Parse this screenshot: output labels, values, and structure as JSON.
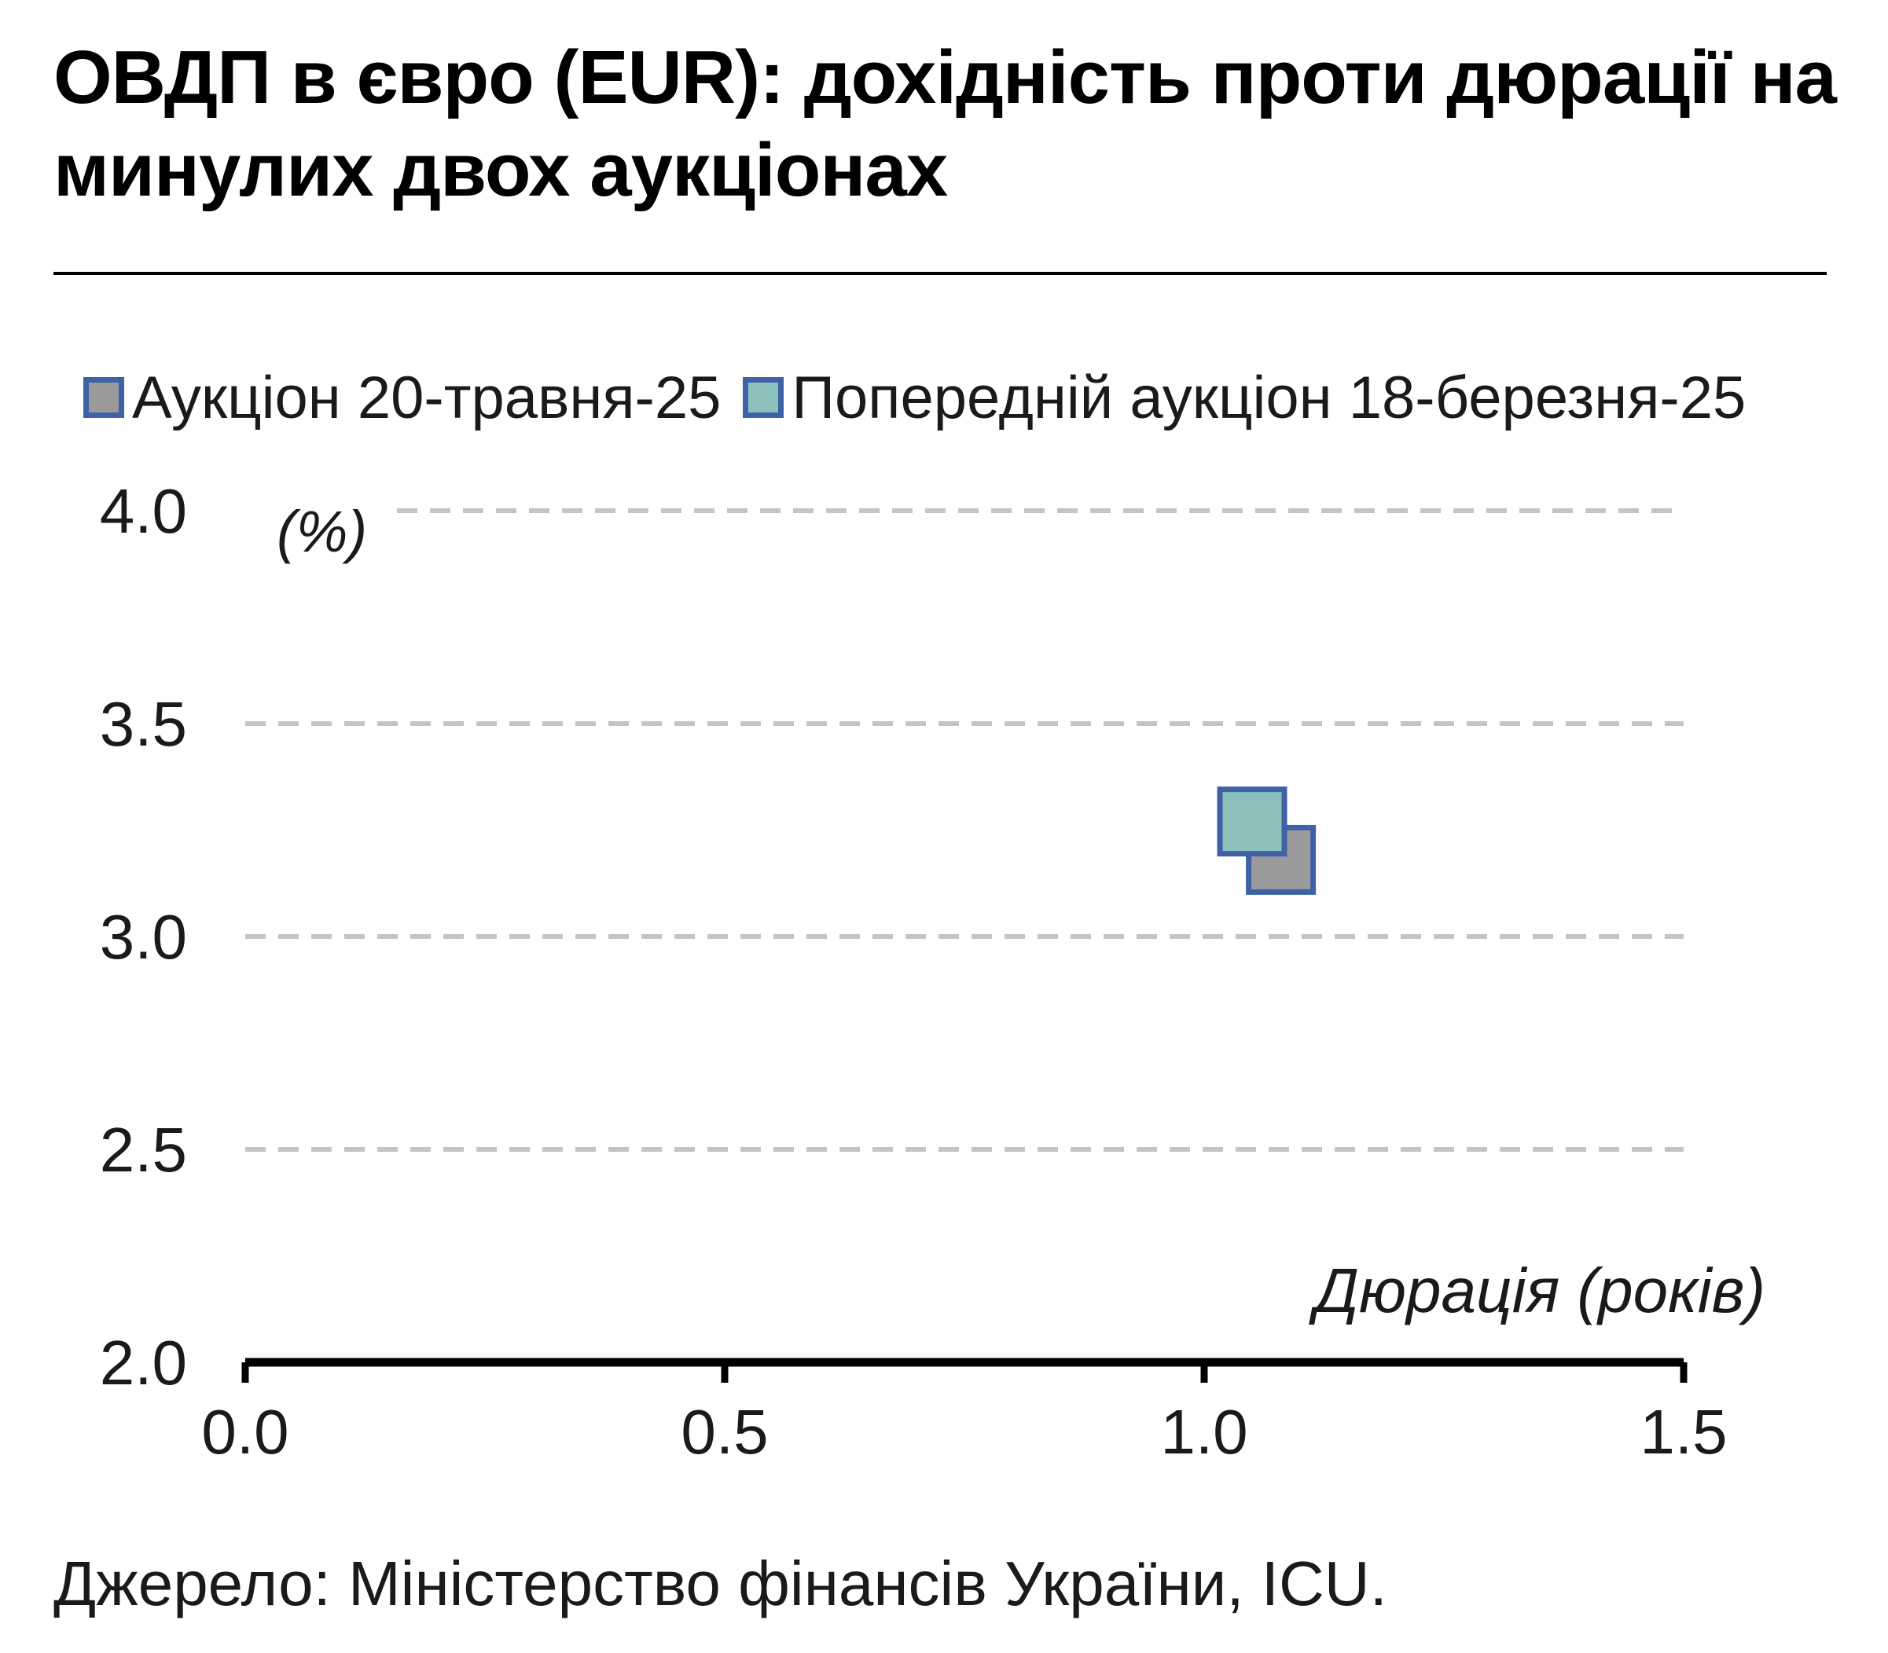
{
  "title": "ОВДП в євро (EUR): дохідність проти дюрації на минулих двох аукціонах",
  "source": "Джерело: Міністерство фінансів України, ICU.",
  "colors": {
    "marker_border": "#3f62a6",
    "current_fill": "#9a9a9a",
    "previous_fill": "#8cc0bb",
    "grid": "#c4c4c4",
    "axis": "#000000"
  },
  "chart_data": {
    "type": "scatter",
    "title": "ОВДП в євро (EUR): дохідність проти дюрації на минулих двох аукціонах",
    "xlabel": "Дюрація (років)",
    "ylabel": "(%)",
    "xlim": [
      0.0,
      1.5
    ],
    "ylim": [
      2.0,
      4.0
    ],
    "xticks": [
      "0.0",
      "0.5",
      "1.0",
      "1.5"
    ],
    "yticks": [
      "2.0",
      "2.5",
      "3.0",
      "3.5",
      "4.0"
    ],
    "grid": "horizontal dashed",
    "legend_position": "top",
    "series": [
      {
        "name": "Аукціон 20-травня-25",
        "marker": "square",
        "fill": "#9a9a9a",
        "points": [
          {
            "x": 1.08,
            "y": 3.18
          }
        ]
      },
      {
        "name": "Попередній аукціон 18-березня-25",
        "marker": "square",
        "fill": "#8cc0bb",
        "points": [
          {
            "x": 1.05,
            "y": 3.27
          }
        ]
      }
    ]
  }
}
